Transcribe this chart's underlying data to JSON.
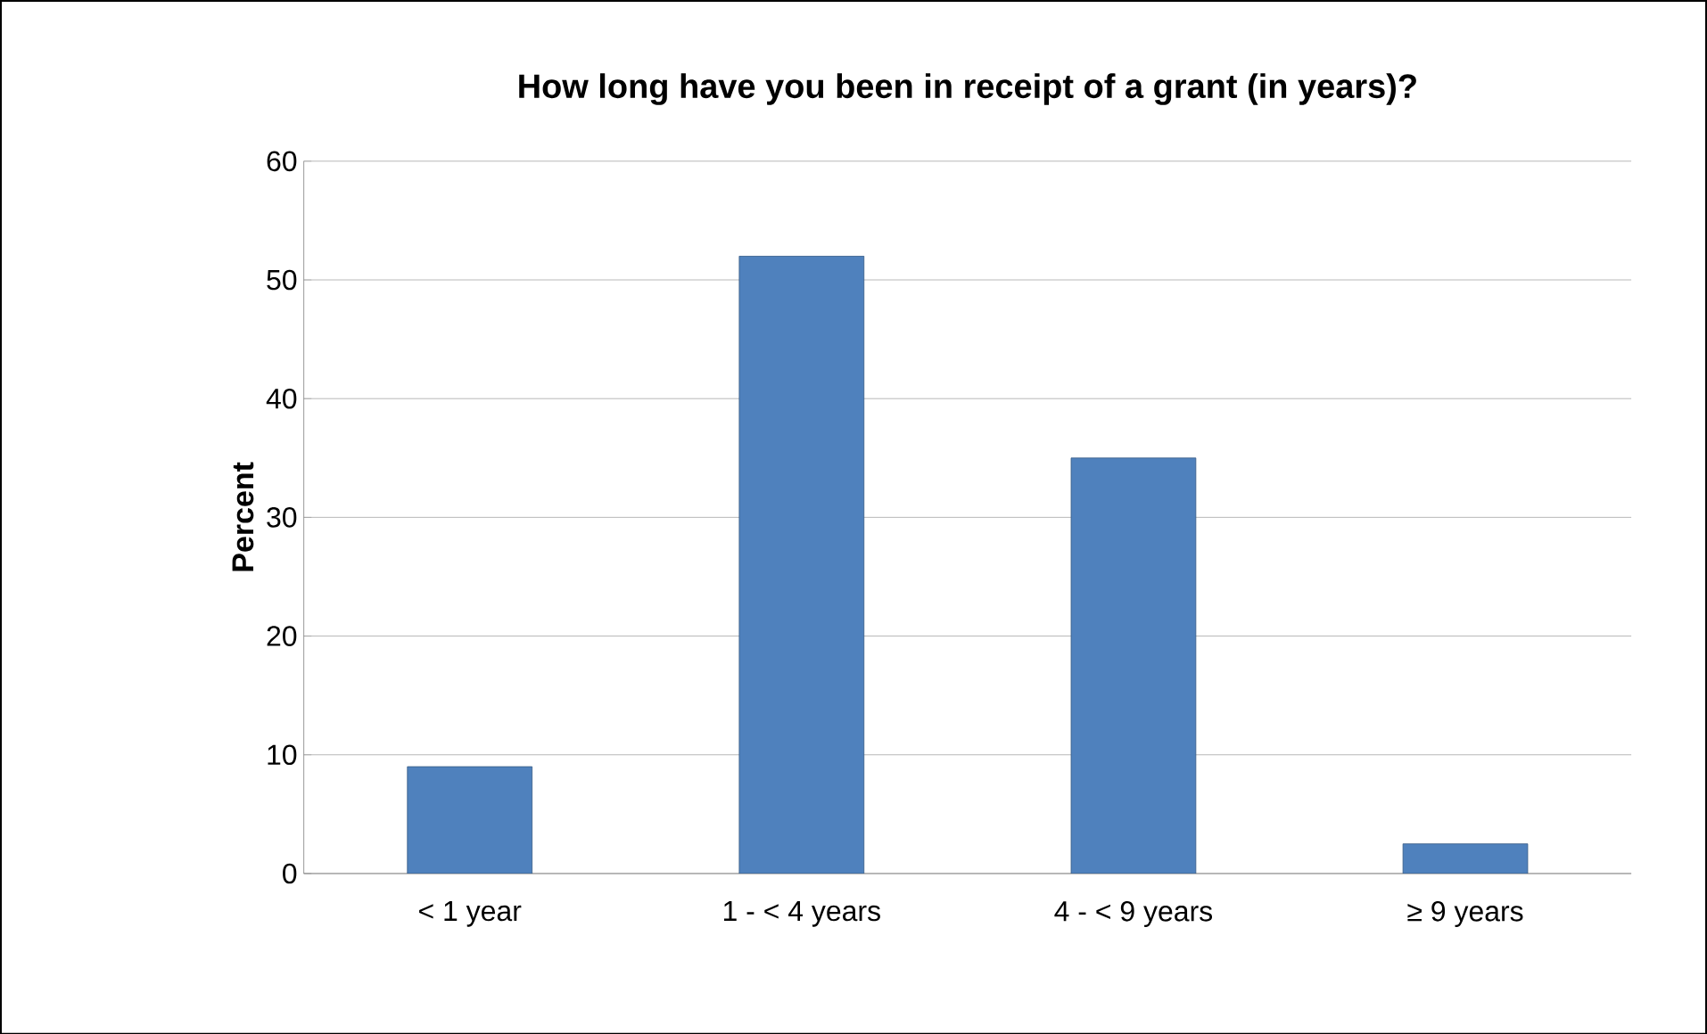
{
  "chart_data": {
    "type": "bar",
    "title": "How long have you been in receipt of a grant (in years)?",
    "ylabel": "Percent",
    "categories": [
      "< 1 year",
      "1 - < 4 years",
      "4 - < 9 years",
      "≥ 9 years"
    ],
    "values": [
      9,
      52,
      35,
      2.5
    ],
    "color": "#4f81bd",
    "ylim": [
      0,
      60
    ],
    "yticks": [
      0,
      10,
      20,
      30,
      40,
      50,
      60
    ],
    "grid": "y"
  }
}
